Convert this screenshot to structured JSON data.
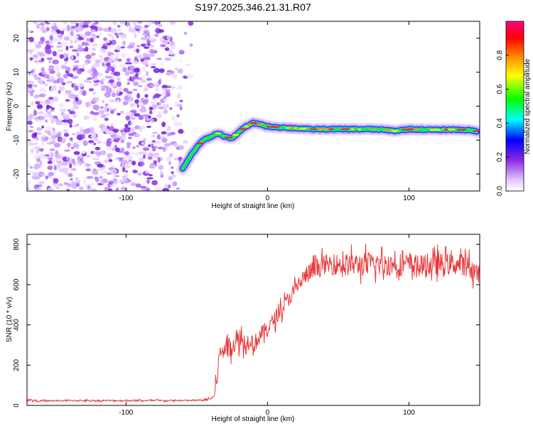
{
  "chart_data": [
    {
      "type": "heatmap",
      "title": "S197.2025.346.21.31.R07",
      "xlabel": "Height of straight line (km)",
      "ylabel": "Frequency (Hz)",
      "xlim": [
        -170,
        150
      ],
      "ylim": [
        -25,
        25
      ],
      "xticks": [
        -100,
        0,
        100
      ],
      "xtick_labels": [
        "-100",
        "0",
        "100"
      ],
      "yticks": [
        -20,
        -10,
        0,
        10,
        20
      ],
      "ytick_labels": [
        "-20",
        "-10",
        "0",
        "10",
        "20"
      ],
      "noise_region_x": [
        -170,
        -52
      ],
      "ridge": {
        "x": [
          -60,
          -55,
          -50,
          -45,
          -40,
          -35,
          -30,
          -25,
          -20,
          -15,
          -10,
          -5,
          0,
          10,
          20,
          30,
          40,
          50,
          60,
          70,
          80,
          90,
          100,
          110,
          120,
          130,
          140,
          148
        ],
        "y": [
          -18.5,
          -15,
          -12,
          -10,
          -9,
          -8,
          -9,
          -9.5,
          -7.5,
          -6,
          -5,
          -5.3,
          -6,
          -6.3,
          -6.5,
          -6.8,
          -6.8,
          -6.8,
          -6.8,
          -6.8,
          -6.9,
          -7.3,
          -6.8,
          -6.9,
          -7.0,
          -6.9,
          -7.0,
          -7.4
        ]
      },
      "colorbar": {
        "label": "Normalized spectral amplitude",
        "range": [
          0,
          1
        ],
        "ticks": [
          0.0,
          0.2,
          0.4,
          0.6,
          0.8
        ],
        "tick_labels": [
          "0.0",
          "0.2",
          "0.4",
          "0.6",
          "0.8"
        ],
        "colormap": [
          "#ffffff",
          "#e6ccff",
          "#8a2be2",
          "#0000ff",
          "#00ffff",
          "#00ff00",
          "#ffff00",
          "#ff8000",
          "#ff0000",
          "#ff0080"
        ]
      }
    },
    {
      "type": "line",
      "xlabel": "Height of straight line (km)",
      "ylabel": "SNR (10 * v/v)",
      "xlim": [
        -170,
        150
      ],
      "ylim": [
        0,
        850
      ],
      "xticks": [
        -100,
        0,
        100
      ],
      "xtick_labels": [
        "-100",
        "0",
        "100"
      ],
      "yticks": [
        0,
        200,
        400,
        600,
        800
      ],
      "ytick_labels": [
        "0",
        "200",
        "400",
        "600",
        "800"
      ],
      "series": [
        {
          "name": "SNR",
          "color": "#e8393b",
          "x": [
            -170,
            -160,
            -140,
            -120,
            -100,
            -80,
            -60,
            -45,
            -38,
            -36,
            -34,
            -30,
            -25,
            -20,
            -17,
            -15,
            -12,
            -10,
            -5,
            0,
            5,
            10,
            15,
            20,
            25,
            30,
            40,
            50,
            60,
            70,
            80,
            90,
            100,
            110,
            120,
            130,
            140,
            150
          ],
          "y": [
            28,
            22,
            24,
            24,
            24,
            24,
            24,
            26,
            40,
            120,
            250,
            290,
            300,
            330,
            320,
            300,
            340,
            300,
            350,
            380,
            430,
            480,
            530,
            580,
            630,
            660,
            700,
            700,
            700,
            700,
            700,
            700,
            700,
            690,
            700,
            700,
            700,
            650
          ],
          "noise_amplitude": [
            8,
            6,
            6,
            6,
            6,
            6,
            6,
            6,
            15,
            60,
            60,
            70,
            70,
            80,
            80,
            70,
            70,
            60,
            60,
            55,
            55,
            55,
            55,
            60,
            65,
            70,
            70,
            75,
            80,
            85,
            80,
            80,
            80,
            80,
            80,
            75,
            75,
            70
          ]
        }
      ]
    }
  ]
}
